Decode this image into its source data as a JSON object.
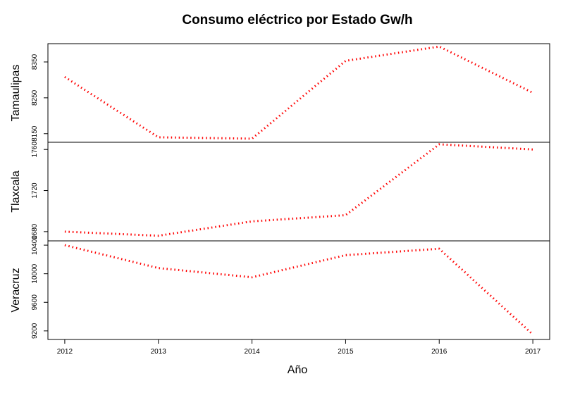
{
  "chart_data": {
    "type": "line",
    "title": "Consumo eléctrico por Estado Gw/h",
    "xlabel": "Año",
    "x": [
      2012,
      2013,
      2014,
      2015,
      2016,
      2017
    ],
    "x_ticks": [
      "2012",
      "2013",
      "2014",
      "2015",
      "2016",
      "2017"
    ],
    "xlim": [
      2011.82,
      2017.18
    ],
    "line_color": "#ff0000",
    "line_style": "dotted",
    "grid": false,
    "panels": [
      {
        "name": "Tamaulipas",
        "values": [
          8308,
          8140,
          8136,
          8353,
          8393,
          8264
        ],
        "ylim": [
          8126,
          8401
        ],
        "y_ticks": [
          8150,
          8250,
          8350
        ],
        "y_tick_labels": [
          "8150",
          "8250",
          "8350"
        ]
      },
      {
        "name": "Tlaxcala",
        "values": [
          1680,
          1676,
          1690,
          1696,
          1765,
          1760
        ],
        "ylim": [
          1671,
          1767
        ],
        "y_ticks": [
          1680,
          1720,
          1760
        ],
        "y_tick_labels": [
          "1680",
          "1720",
          "1760"
        ]
      },
      {
        "name": "Veracruz",
        "values": [
          10400,
          10080,
          9950,
          10260,
          10350,
          9150
        ],
        "ylim": [
          9080,
          10460
        ],
        "y_ticks": [
          9200,
          9600,
          10000,
          10400
        ],
        "y_tick_labels": [
          "9200",
          "9600",
          "10000",
          "10400"
        ]
      }
    ]
  }
}
